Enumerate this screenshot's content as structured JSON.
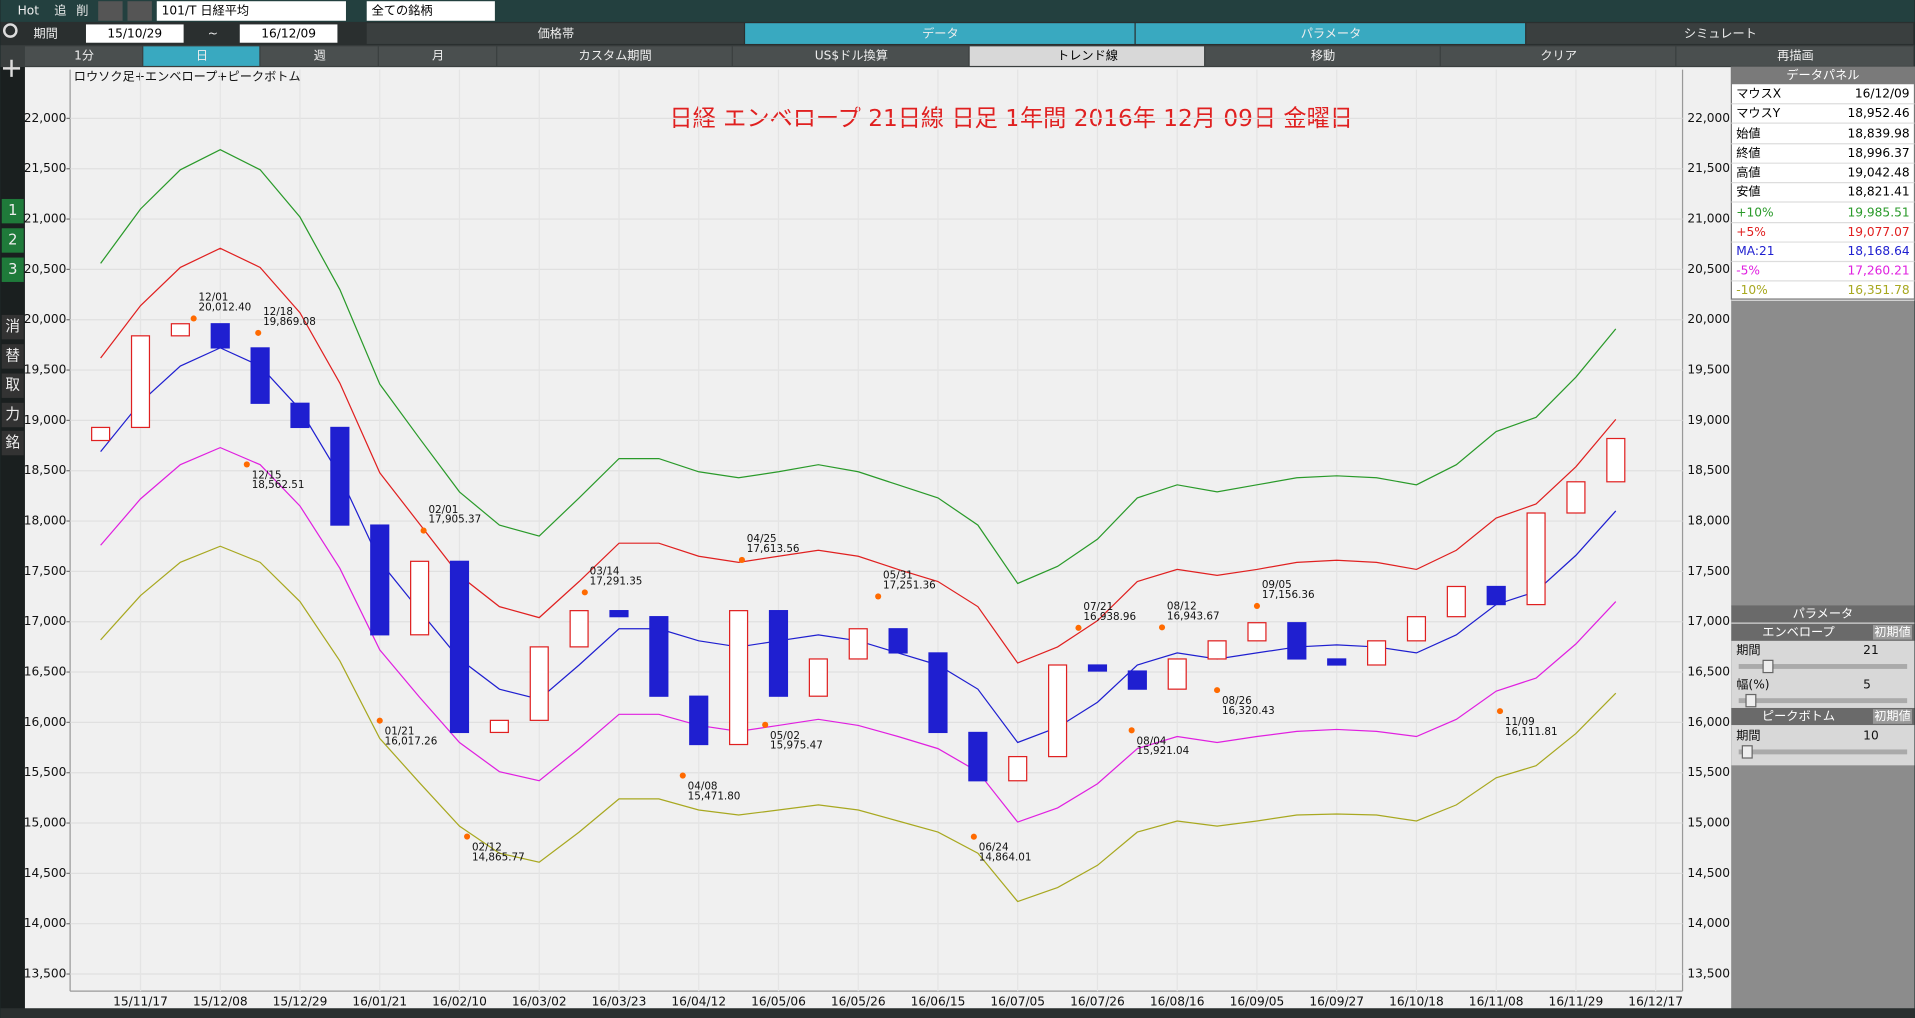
{
  "toolbar": {
    "hot": "Hot",
    "add": "追",
    "delete": "削",
    "symbol": "101/T 日経平均",
    "universe": "全ての銘柄",
    "period_label": "期間",
    "start": "15/10/29",
    "tilde": "~",
    "end": "16/12/09",
    "tabs": [
      "価格帯",
      "データ",
      "パラメータ",
      "シミュレート"
    ]
  },
  "buttons": [
    "1分",
    "日",
    "週",
    "月",
    "カスタム期間",
    "US$ドル換算",
    "トレンド線",
    "移動",
    "クリア",
    "再描画"
  ],
  "sidebar": [
    "1",
    "2",
    "3",
    "消",
    "替",
    "取",
    "力",
    "銘"
  ],
  "data_panel": {
    "title": "データパネル",
    "rows": [
      [
        "マウスX",
        "16/12/09"
      ],
      [
        "マウスY",
        "18,952.46"
      ],
      [
        "始値",
        "18,839.98"
      ],
      [
        "終値",
        "18,996.37"
      ],
      [
        "高値",
        "19,042.48"
      ],
      [
        "安値",
        "18,821.41"
      ],
      [
        "+10%",
        "19,985.51"
      ],
      [
        "+5%",
        "19,077.07"
      ],
      [
        "MA:21",
        "18,168.64"
      ],
      [
        "-5%",
        "17,260.21"
      ],
      [
        "-10%",
        "16,351.78"
      ]
    ]
  },
  "param_panel": {
    "title": "パラメータ",
    "envelope": "エンベロープ",
    "envelope_reset": "初期値",
    "envelope_period_label": "期間",
    "envelope_period": "21",
    "width_label": "幅(%)",
    "width": "5",
    "peakbottom": "ピークボトム",
    "peakbottom_reset": "初期値",
    "peakbottom_period_label": "期間",
    "peakbottom_period": "10"
  },
  "chart_data": {
    "type": "candlestick",
    "title": "日経  エンベロープ 21日線     日足     1年間    2016年 12月 09日 金曜日",
    "subtitle": "ロウソク足+エンベロープ+ピークボトム",
    "categories": [
      null,
      "15/11/17",
      null,
      "15/12/08",
      null,
      "15/12/29",
      null,
      "16/01/21",
      null,
      "16/02/10",
      null,
      "16/03/02",
      null,
      "16/03/23",
      null,
      "16/04/12",
      null,
      "16/05/06",
      null,
      "16/05/26",
      null,
      "16/06/15",
      null,
      "16/07/05",
      null,
      "16/07/26",
      null,
      "16/08/16",
      null,
      "16/09/05",
      null,
      "16/09/27",
      null,
      "16/10/18",
      null,
      "16/11/08",
      null,
      "16/11/29",
      null,
      "16/12/17"
    ],
    "candles": {
      "open": [
        18800,
        18930,
        19840,
        19960,
        19720,
        19170,
        18930,
        17960,
        16870,
        17600,
        15900,
        16020,
        16750,
        17110,
        17050,
        16260,
        15780,
        17110,
        16260,
        16630,
        16930,
        16690,
        15900,
        15420,
        15660,
        16570,
        16510,
        16330,
        16630,
        16810,
        16990,
        16630,
        16570,
        16810,
        17050,
        17350,
        17170,
        18080,
        18390,
        null
      ],
      "close": [
        18930,
        19840,
        19960,
        19720,
        19170,
        18930,
        17960,
        16870,
        17600,
        15900,
        16020,
        16750,
        17110,
        17050,
        16260,
        15780,
        17110,
        16260,
        16630,
        16930,
        16690,
        15900,
        15420,
        15660,
        16570,
        16510,
        16330,
        16630,
        16810,
        16990,
        16630,
        16570,
        16810,
        17050,
        17350,
        17170,
        18080,
        18390,
        18820,
        null
      ]
    },
    "series": [
      {
        "name": "+10%",
        "color": "#2a9a2a",
        "values": [
          20560,
          21100,
          21490,
          21690,
          21490,
          21020,
          20300,
          19360,
          18820,
          18290,
          17960,
          17850,
          18230,
          18620,
          18620,
          18490,
          18430,
          18490,
          18560,
          18490,
          18360,
          18230,
          17960,
          17380,
          17550,
          17820,
          18230,
          18360,
          18290,
          18360,
          18430,
          18450,
          18430,
          18360,
          18560,
          18890,
          19030,
          19430,
          19910,
          null
        ]
      },
      {
        "name": "+5%",
        "color": "#e02020",
        "values": [
          19620,
          20140,
          20520,
          20710,
          20520,
          20070,
          19370,
          18480,
          17970,
          17460,
          17150,
          17040,
          17400,
          17780,
          17780,
          17650,
          17590,
          17650,
          17710,
          17650,
          17520,
          17400,
          17150,
          16590,
          16750,
          17010,
          17400,
          17520,
          17460,
          17520,
          17590,
          17610,
          17590,
          17520,
          17710,
          18030,
          18170,
          18540,
          19010,
          null
        ]
      },
      {
        "name": "MA:21",
        "color": "#1f1fd0",
        "values": [
          18690,
          19180,
          19540,
          19720,
          19540,
          19110,
          18450,
          17600,
          17110,
          16630,
          16330,
          16230,
          16570,
          16930,
          16930,
          16810,
          16750,
          16810,
          16870,
          16810,
          16690,
          16570,
          16330,
          15800,
          15950,
          16200,
          16570,
          16690,
          16630,
          16690,
          16750,
          16770,
          16750,
          16690,
          16870,
          17170,
          17300,
          17660,
          18100,
          null
        ]
      },
      {
        "name": "-5%",
        "color": "#e020e0",
        "values": [
          17760,
          18220,
          18560,
          18730,
          18560,
          18150,
          17530,
          16720,
          16250,
          15800,
          15510,
          15420,
          15740,
          16080,
          16080,
          15970,
          15910,
          15970,
          16030,
          15970,
          15860,
          15740,
          15510,
          15010,
          15150,
          15390,
          15740,
          15860,
          15800,
          15860,
          15910,
          15930,
          15910,
          15860,
          16030,
          16310,
          16440,
          16780,
          17200,
          null
        ]
      },
      {
        "name": "-10%",
        "color": "#a8a820",
        "values": [
          16820,
          17260,
          17590,
          17750,
          17590,
          17200,
          16610,
          15840,
          15400,
          14970,
          14700,
          14610,
          14910,
          15240,
          15240,
          15130,
          15080,
          15130,
          15180,
          15130,
          15020,
          14910,
          14700,
          14220,
          14360,
          14580,
          14910,
          15020,
          14970,
          15020,
          15080,
          15090,
          15080,
          15020,
          15180,
          15450,
          15570,
          15890,
          16290,
          null
        ]
      }
    ],
    "peaks": [
      {
        "date": "12/01",
        "value": 20012.4,
        "value_label": "20,012.40"
      },
      {
        "date": "12/18",
        "value": 19869.08,
        "value_label": "19,869.08"
      },
      {
        "date": "02/01",
        "value": 17905.37,
        "value_label": "17,905.37"
      },
      {
        "date": "03/14",
        "value": 17291.35,
        "value_label": "17,291.35"
      },
      {
        "date": "04/25",
        "value": 17613.56,
        "value_label": "17,613.56"
      },
      {
        "date": "05/31",
        "value": 17251.36,
        "value_label": "17,251.36"
      },
      {
        "date": "07/21",
        "value": 16938.96,
        "value_label": "16,938.96"
      },
      {
        "date": "08/12",
        "value": 16943.67,
        "value_label": "16,943.67"
      },
      {
        "date": "09/05",
        "value": 17156.36,
        "value_label": "17,156.36"
      }
    ],
    "bottoms": [
      {
        "date": "12/15",
        "value": 18562.51,
        "value_label": "18,562.51"
      },
      {
        "date": "01/21",
        "value": 16017.26,
        "value_label": "16,017.26"
      },
      {
        "date": "02/12",
        "value": 14865.77,
        "value_label": "14,865.77"
      },
      {
        "date": "04/08",
        "value": 15471.8,
        "value_label": "15,471.80"
      },
      {
        "date": "05/02",
        "value": 15975.47,
        "value_label": "15,975.47"
      },
      {
        "date": "06/24",
        "value": 14864.01,
        "value_label": "14,864.01"
      },
      {
        "date": "08/04",
        "value": 15921.04,
        "value_label": "15,921.04"
      },
      {
        "date": "08/26",
        "value": 16320.43,
        "value_label": "16,320.43"
      },
      {
        "date": "11/09",
        "value": 16111.81,
        "value_label": "16,111.81"
      }
    ],
    "ylim": [
      13330,
      22485
    ],
    "yticks": [
      {
        "value": 13500,
        "label": "13,500"
      },
      {
        "value": 14000,
        "label": "14,000"
      },
      {
        "value": 14500,
        "label": "14,500"
      },
      {
        "value": 15000,
        "label": "15,000"
      },
      {
        "value": 15500,
        "label": "15,500"
      },
      {
        "value": 16000,
        "label": "16,000"
      },
      {
        "value": 16500,
        "label": "16,500"
      },
      {
        "value": 17000,
        "label": "17,000"
      },
      {
        "value": 17500,
        "label": "17,500"
      },
      {
        "value": 18000,
        "label": "18,000"
      },
      {
        "value": 18500,
        "label": "18,500"
      },
      {
        "value": 19000,
        "label": "19,000"
      },
      {
        "value": 19500,
        "label": "19,500"
      },
      {
        "value": 20000,
        "label": "20,000"
      },
      {
        "value": 20500,
        "label": "20,500"
      },
      {
        "value": 21000,
        "label": "21,000"
      },
      {
        "value": 21500,
        "label": "21,500"
      },
      {
        "value": 22000,
        "label": "22,000"
      }
    ],
    "grid": true
  }
}
